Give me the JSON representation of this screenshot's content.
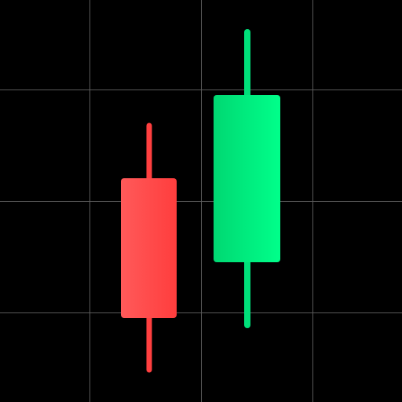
{
  "colors": {
    "background": "#000000",
    "grid": "#5a5a5a",
    "bearish_body_light": "#ff5a5a",
    "bearish_body_dark": "#ff3d3d",
    "bearish_wick": "#ff3f3f",
    "bullish_body_dark": "#00d872",
    "bullish_body_light": "#00ff8a",
    "bullish_wick": "#00e07a"
  },
  "icons": {
    "main": "candlestick-chart-icon"
  }
}
